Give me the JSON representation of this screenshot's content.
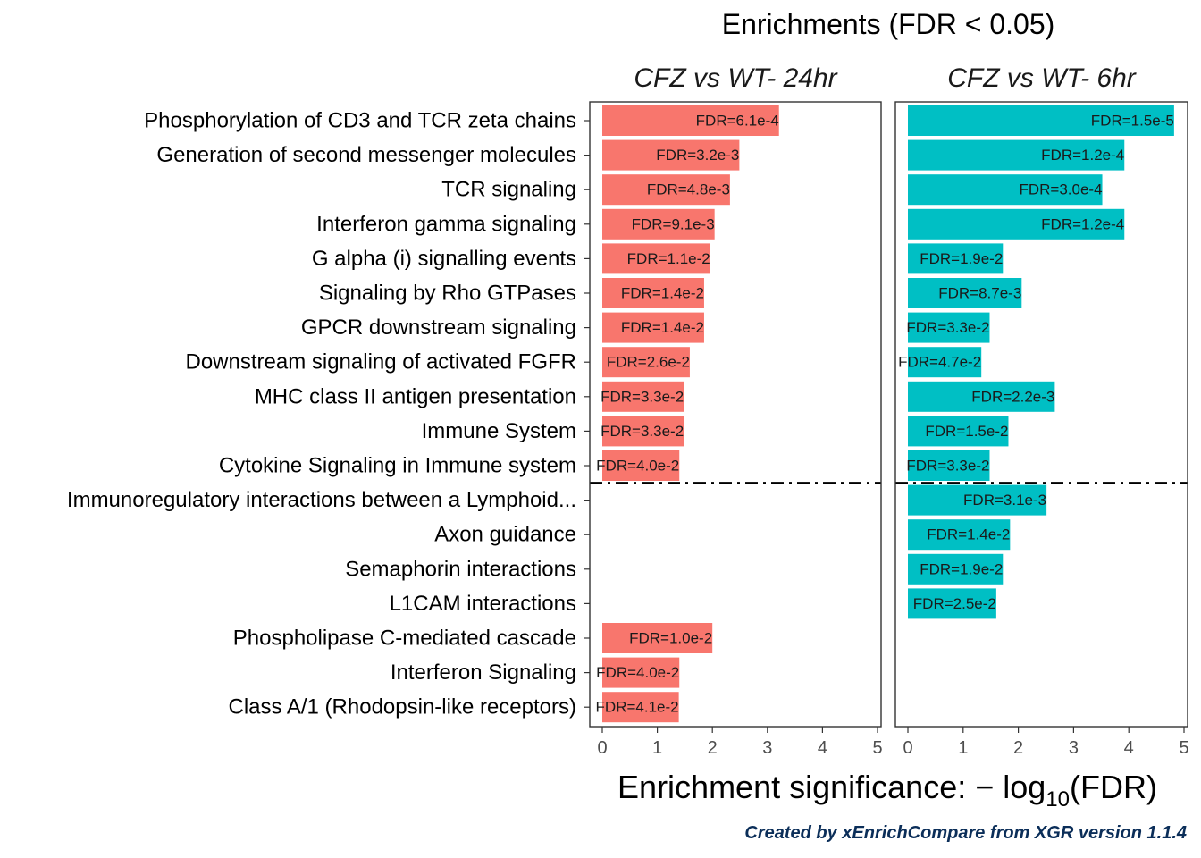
{
  "chart_data": {
    "type": "bar",
    "orientation": "horizontal",
    "title": "Enrichments (FDR < 0.05)",
    "xlabel": "Enrichment significance: −log10(FDR)",
    "credit": "Created by xEnrichCompare from XGR version 1.1.4",
    "xlim": [
      0,
      5
    ],
    "x_ticks": [
      "0",
      "1",
      "2",
      "3",
      "4",
      "5"
    ],
    "categories": [
      "Phosphorylation of CD3 and TCR zeta chains",
      "Generation of second messenger molecules",
      "TCR signaling",
      "Interferon gamma signaling",
      "G alpha (i) signalling events",
      "Signaling by Rho GTPases",
      "GPCR downstream signaling",
      "Downstream signaling of activated FGFR",
      "MHC class II antigen presentation",
      "Immune System",
      "Cytokine Signaling in Immune system",
      "Immunoregulatory interactions between a Lymphoid...",
      "Axon guidance",
      "Semaphorin interactions",
      "L1CAM interactions",
      "Phospholipase C-mediated cascade",
      "Interferon Signaling",
      "Class A/1 (Rhodopsin-like receptors)"
    ],
    "separator_after_index": 10,
    "series": [
      {
        "name": "CFZ vs WT- 24hr",
        "color": "#F8766D",
        "values": [
          3.21,
          2.49,
          2.32,
          2.04,
          1.96,
          1.85,
          1.85,
          1.59,
          1.48,
          1.48,
          1.4,
          null,
          null,
          null,
          null,
          2.0,
          1.4,
          1.39
        ],
        "labels": [
          "FDR=6.1e-4",
          "FDR=3.2e-3",
          "FDR=4.8e-3",
          "FDR=9.1e-3",
          "FDR=1.1e-2",
          "FDR=1.4e-2",
          "FDR=1.4e-2",
          "FDR=2.6e-2",
          "FDR=3.3e-2",
          "FDR=3.3e-2",
          "FDR=4.0e-2",
          null,
          null,
          null,
          null,
          "FDR=1.0e-2",
          "FDR=4.0e-2",
          "FDR=4.1e-2"
        ]
      },
      {
        "name": "CFZ vs WT- 6hr",
        "color": "#00BFC4",
        "values": [
          4.82,
          3.92,
          3.52,
          3.92,
          1.72,
          2.06,
          1.48,
          1.33,
          2.66,
          1.82,
          1.48,
          2.51,
          1.85,
          1.72,
          1.6,
          null,
          null,
          null
        ],
        "labels": [
          "FDR=1.5e-5",
          "FDR=1.2e-4",
          "FDR=3.0e-4",
          "FDR=1.2e-4",
          "FDR=1.9e-2",
          "FDR=8.7e-3",
          "FDR=3.3e-2",
          "FDR=4.7e-2",
          "FDR=2.2e-3",
          "FDR=1.5e-2",
          "FDR=3.3e-2",
          "FDR=3.1e-3",
          "FDR=1.4e-2",
          "FDR=1.9e-2",
          "FDR=2.5e-2",
          null,
          null,
          null
        ]
      }
    ]
  }
}
